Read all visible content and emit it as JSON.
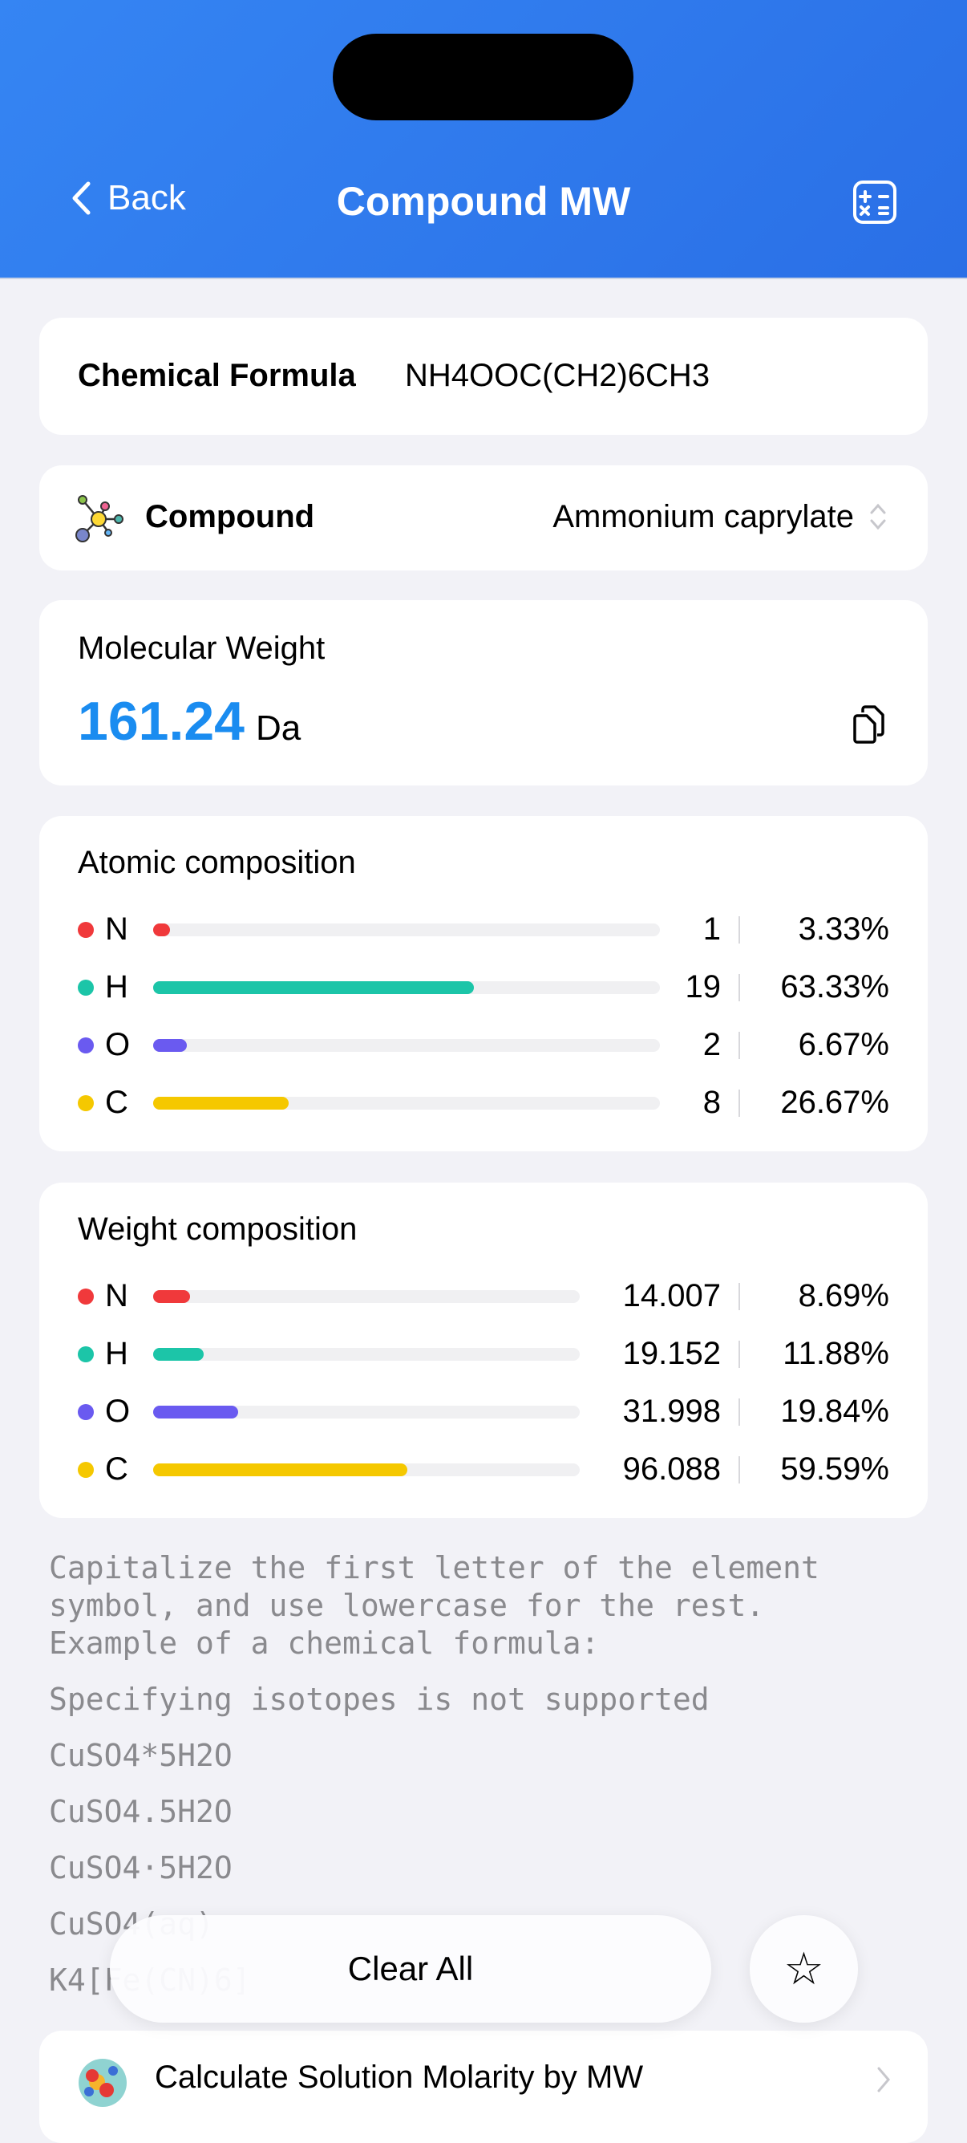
{
  "nav": {
    "back_label": "Back",
    "title": "Compound MW",
    "calculator_icon": "calculator-icon"
  },
  "formula": {
    "label": "Chemical Formula",
    "value": "NH4OOC(CH2)6CH3"
  },
  "compound": {
    "label": "Compound",
    "value": "Ammonium caprylate",
    "icon": "molecule-icon"
  },
  "mw": {
    "label": "Molecular Weight",
    "value": "161.24",
    "unit": "Da",
    "copy_icon": "copy-icon"
  },
  "atomic": {
    "title": "Atomic composition",
    "rows": [
      {
        "symbol": "N",
        "count": "1",
        "percent": "3.33%",
        "fraction": 0.0333,
        "color": "#f0393b"
      },
      {
        "symbol": "H",
        "count": "19",
        "percent": "63.33%",
        "fraction": 0.6333,
        "color": "#1cc5a8"
      },
      {
        "symbol": "O",
        "count": "2",
        "percent": "6.67%",
        "fraction": 0.0667,
        "color": "#6a5af0"
      },
      {
        "symbol": "C",
        "count": "8",
        "percent": "26.67%",
        "fraction": 0.2667,
        "color": "#f5c800"
      }
    ]
  },
  "weight": {
    "title": "Weight composition",
    "rows": [
      {
        "symbol": "N",
        "mass": "14.007",
        "percent": "8.69%",
        "fraction": 0.0869,
        "color": "#f0393b"
      },
      {
        "symbol": "H",
        "mass": "19.152",
        "percent": "11.88%",
        "fraction": 0.1188,
        "color": "#1cc5a8"
      },
      {
        "symbol": "O",
        "mass": "31.998",
        "percent": "19.84%",
        "fraction": 0.1984,
        "color": "#6a5af0"
      },
      {
        "symbol": "C",
        "mass": "96.088",
        "percent": "59.59%",
        "fraction": 0.5959,
        "color": "#f5c800"
      }
    ]
  },
  "hints": [
    "Capitalize the first letter of the element",
    "symbol, and use lowercase for the rest.",
    "Example of a chemical formula:",
    "Specifying isotopes is not supported",
    "CuSO4*5H2O",
    "CuSO4.5H2O",
    "CuSO4·5H2O",
    "CuSO4(aq)",
    "K4[Fe(CN)6]"
  ],
  "actions": {
    "clear_label": "Clear All",
    "favorite_icon": "star-icon"
  },
  "link": {
    "label": "Calculate Solution Molarity by MW"
  }
}
